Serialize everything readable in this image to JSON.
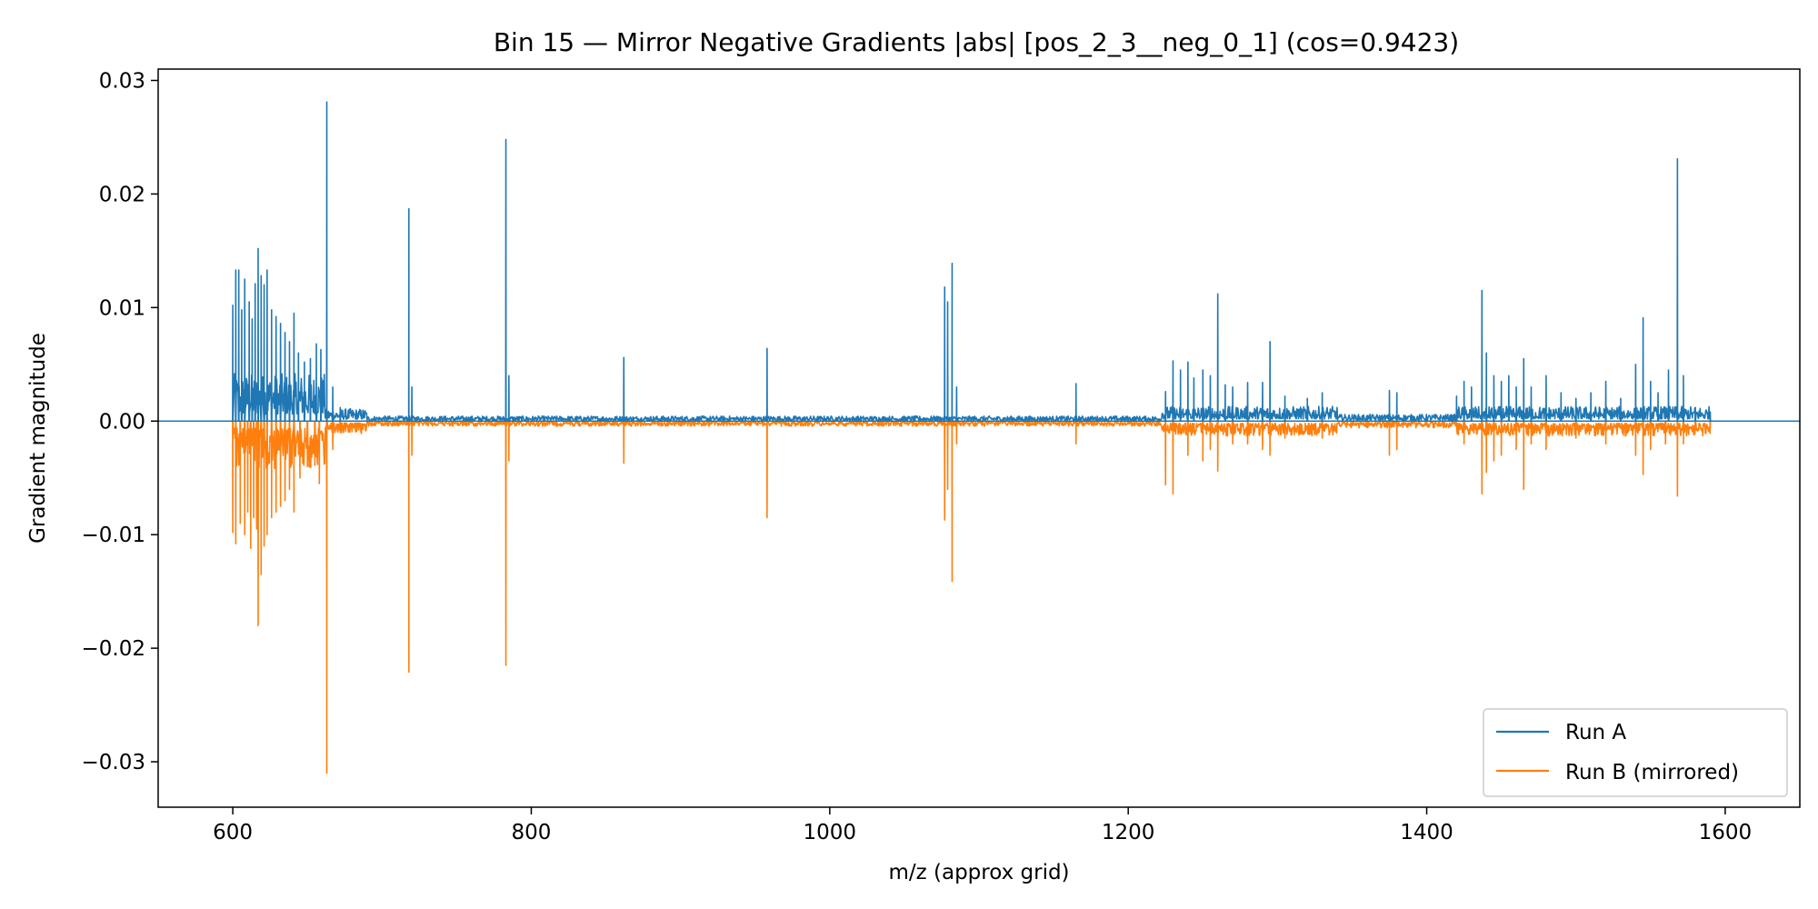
{
  "chart_data": {
    "type": "line",
    "title": "Bin 15 — Mirror Negative Gradients |abs| [pos_2_3__neg_0_1] (cos=0.9423)",
    "xlabel": "m/z (approx grid)",
    "ylabel": "Gradient magnitude",
    "xlim": [
      550,
      1650
    ],
    "ylim": [
      -0.034,
      0.031
    ],
    "xticks": [
      600,
      800,
      1000,
      1200,
      1400,
      1600
    ],
    "xtick_labels": [
      "600",
      "800",
      "1000",
      "1200",
      "1400",
      "1600"
    ],
    "yticks": [
      0.03,
      0.02,
      0.01,
      0.0,
      -0.01,
      -0.02,
      -0.03
    ],
    "ytick_labels": [
      "0.03",
      "0.02",
      "0.01",
      "0.00",
      "−0.01",
      "−0.02",
      "−0.03"
    ],
    "grid": false,
    "legend_position": "lower-right",
    "baseline": 0,
    "series": [
      {
        "name": "Run A",
        "color": "#1f77b4",
        "peaks": [
          [
            600,
            0.0102
          ],
          [
            602,
            0.0133
          ],
          [
            604,
            0.0133
          ],
          [
            606,
            0.0098
          ],
          [
            608,
            0.0125
          ],
          [
            611,
            0.0105
          ],
          [
            613,
            0.009
          ],
          [
            615,
            0.0121
          ],
          [
            617,
            0.0152
          ],
          [
            619,
            0.0128
          ],
          [
            621,
            0.012
          ],
          [
            623,
            0.0133
          ],
          [
            626,
            0.0098
          ],
          [
            629,
            0.0092
          ],
          [
            632,
            0.0086
          ],
          [
            635,
            0.0078
          ],
          [
            638,
            0.007
          ],
          [
            641,
            0.0095
          ],
          [
            644,
            0.006
          ],
          [
            648,
            0.0052
          ],
          [
            652,
            0.0055
          ],
          [
            656,
            0.0068
          ],
          [
            659,
            0.0063
          ],
          [
            663,
            0.0281
          ],
          [
            667,
            0.003
          ],
          [
            672,
            0.0012
          ],
          [
            718,
            0.0187
          ],
          [
            720,
            0.003
          ],
          [
            783,
            0.0248
          ],
          [
            785,
            0.004
          ],
          [
            862,
            0.0056
          ],
          [
            958,
            0.0064
          ],
          [
            1077,
            0.0118
          ],
          [
            1079,
            0.0105
          ],
          [
            1082,
            0.0139
          ],
          [
            1085,
            0.003
          ],
          [
            1165,
            0.0033
          ],
          [
            1225,
            0.0026
          ],
          [
            1230,
            0.0053
          ],
          [
            1235,
            0.0045
          ],
          [
            1240,
            0.0052
          ],
          [
            1244,
            0.0038
          ],
          [
            1250,
            0.0045
          ],
          [
            1255,
            0.004
          ],
          [
            1260,
            0.0112
          ],
          [
            1265,
            0.0032
          ],
          [
            1270,
            0.003
          ],
          [
            1280,
            0.0034
          ],
          [
            1290,
            0.0034
          ],
          [
            1295,
            0.007
          ],
          [
            1305,
            0.0022
          ],
          [
            1320,
            0.002
          ],
          [
            1330,
            0.0025
          ],
          [
            1375,
            0.0027
          ],
          [
            1380,
            0.0025
          ],
          [
            1420,
            0.0022
          ],
          [
            1425,
            0.0035
          ],
          [
            1430,
            0.003
          ],
          [
            1437,
            0.0115
          ],
          [
            1440,
            0.006
          ],
          [
            1445,
            0.004
          ],
          [
            1450,
            0.0035
          ],
          [
            1455,
            0.004
          ],
          [
            1460,
            0.003
          ],
          [
            1465,
            0.0055
          ],
          [
            1470,
            0.003
          ],
          [
            1480,
            0.004
          ],
          [
            1490,
            0.0025
          ],
          [
            1500,
            0.002
          ],
          [
            1510,
            0.0025
          ],
          [
            1520,
            0.0035
          ],
          [
            1530,
            0.002
          ],
          [
            1540,
            0.005
          ],
          [
            1545,
            0.0091
          ],
          [
            1550,
            0.0035
          ],
          [
            1555,
            0.0025
          ],
          [
            1562,
            0.0045
          ],
          [
            1568,
            0.0231
          ],
          [
            1572,
            0.004
          ],
          [
            1580,
            0.0012
          ],
          [
            1590,
            0.0008
          ]
        ]
      },
      {
        "name": "Run B (mirrored)",
        "color": "#ff7f0e",
        "peaks": [
          [
            600,
            -0.0098
          ],
          [
            602,
            -0.0108
          ],
          [
            605,
            -0.009
          ],
          [
            608,
            -0.01
          ],
          [
            610,
            -0.008
          ],
          [
            612,
            -0.0112
          ],
          [
            614,
            -0.0085
          ],
          [
            616,
            -0.0095
          ],
          [
            617,
            -0.018
          ],
          [
            619,
            -0.0135
          ],
          [
            621,
            -0.011
          ],
          [
            623,
            -0.01
          ],
          [
            626,
            -0.0085
          ],
          [
            629,
            -0.008
          ],
          [
            632,
            -0.0075
          ],
          [
            635,
            -0.007
          ],
          [
            638,
            -0.006
          ],
          [
            641,
            -0.008
          ],
          [
            645,
            -0.005
          ],
          [
            650,
            -0.004
          ],
          [
            655,
            -0.0035
          ],
          [
            658,
            -0.0055
          ],
          [
            663,
            -0.031
          ],
          [
            667,
            -0.0025
          ],
          [
            672,
            -0.001
          ],
          [
            718,
            -0.0221
          ],
          [
            720,
            -0.003
          ],
          [
            783,
            -0.0215
          ],
          [
            785,
            -0.0035
          ],
          [
            862,
            -0.0037
          ],
          [
            958,
            -0.0085
          ],
          [
            1077,
            -0.0087
          ],
          [
            1079,
            -0.006
          ],
          [
            1082,
            -0.0141
          ],
          [
            1085,
            -0.002
          ],
          [
            1165,
            -0.002
          ],
          [
            1225,
            -0.0056
          ],
          [
            1230,
            -0.0064
          ],
          [
            1240,
            -0.003
          ],
          [
            1250,
            -0.0035
          ],
          [
            1255,
            -0.0025
          ],
          [
            1260,
            -0.0044
          ],
          [
            1270,
            -0.002
          ],
          [
            1280,
            -0.002
          ],
          [
            1290,
            -0.0025
          ],
          [
            1295,
            -0.003
          ],
          [
            1305,
            -0.0015
          ],
          [
            1330,
            -0.0015
          ],
          [
            1375,
            -0.003
          ],
          [
            1380,
            -0.0025
          ],
          [
            1425,
            -0.002
          ],
          [
            1437,
            -0.0064
          ],
          [
            1440,
            -0.0045
          ],
          [
            1445,
            -0.0035
          ],
          [
            1450,
            -0.003
          ],
          [
            1460,
            -0.0025
          ],
          [
            1465,
            -0.006
          ],
          [
            1470,
            -0.002
          ],
          [
            1480,
            -0.0025
          ],
          [
            1500,
            -0.0015
          ],
          [
            1520,
            -0.002
          ],
          [
            1540,
            -0.003
          ],
          [
            1545,
            -0.0047
          ],
          [
            1550,
            -0.0025
          ],
          [
            1560,
            -0.002
          ],
          [
            1568,
            -0.0066
          ],
          [
            1572,
            -0.002
          ],
          [
            1580,
            -0.0008
          ],
          [
            1590,
            -0.0006
          ]
        ]
      }
    ]
  }
}
